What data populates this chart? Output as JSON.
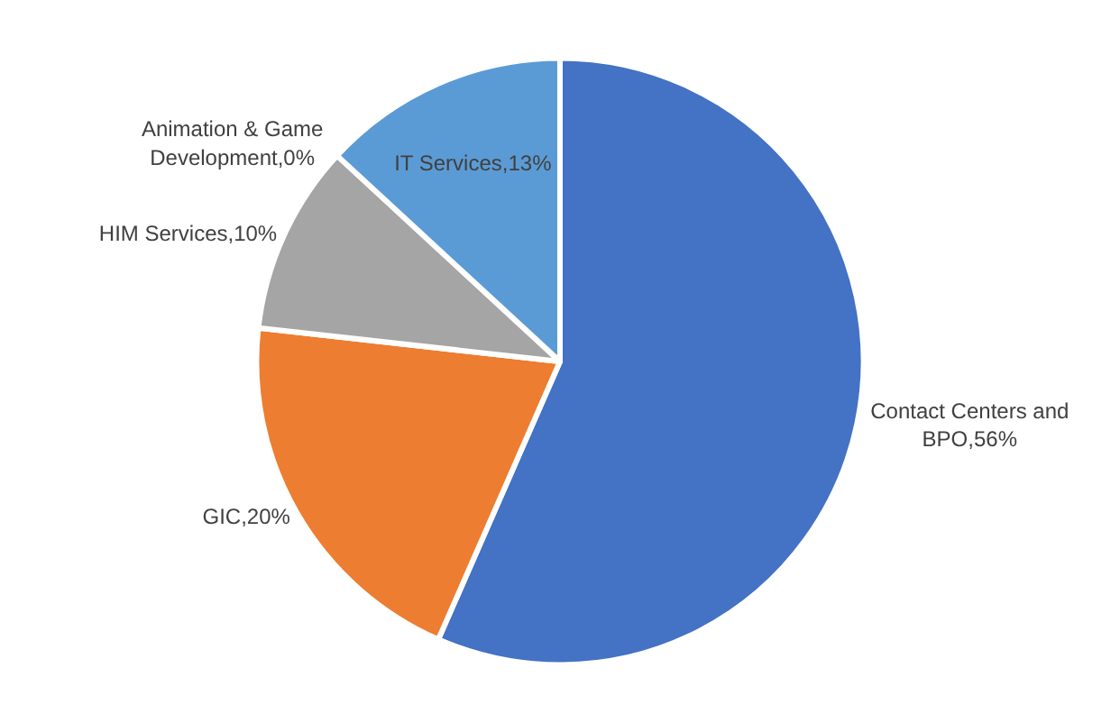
{
  "chart_data": {
    "type": "pie",
    "categories": [
      "Contact Centers and BPO,56%",
      "GIC,20%",
      "HIM Services,10%",
      "Animation & Game Development,0%",
      "IT Services,13%"
    ],
    "values": [
      56,
      20,
      10,
      0,
      13
    ],
    "colors": [
      "#4472c4",
      "#ed7d31",
      "#a5a5a5",
      "#ffc000",
      "#5b9bd5"
    ],
    "legend": false
  }
}
